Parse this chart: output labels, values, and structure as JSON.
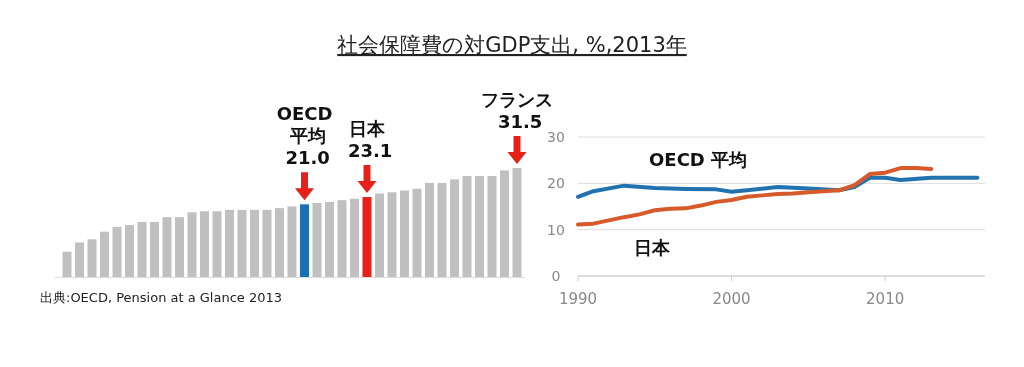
{
  "chart_data": [
    {
      "type": "bar",
      "title": "社会保障費の対GDP支出, %,2013年",
      "categories": [
        null,
        null,
        null,
        null,
        null,
        null,
        null,
        null,
        null,
        null,
        null,
        null,
        null,
        null,
        null,
        null,
        null,
        null,
        null,
        null,
        null,
        null,
        null,
        null,
        null,
        null,
        null,
        null,
        null,
        null,
        null,
        null,
        null,
        null,
        null,
        null,
        null
      ],
      "values": [
        7.3,
        10.0,
        10.9,
        13.1,
        14.5,
        15.0,
        15.9,
        15.9,
        17.3,
        17.3,
        18.7,
        19.0,
        19.0,
        19.4,
        19.4,
        19.4,
        19.4,
        19.9,
        20.4,
        21.0,
        21.4,
        21.7,
        22.2,
        22.6,
        23.1,
        24.1,
        24.5,
        25.0,
        25.5,
        27.2,
        27.2,
        28.2,
        29.2,
        29.2,
        29.2,
        30.8,
        31.5
      ],
      "colors": [
        "#c0c0c0",
        "#c0c0c0",
        "#c0c0c0",
        "#c0c0c0",
        "#c0c0c0",
        "#c0c0c0",
        "#c0c0c0",
        "#c0c0c0",
        "#c0c0c0",
        "#c0c0c0",
        "#c0c0c0",
        "#c0c0c0",
        "#c0c0c0",
        "#c0c0c0",
        "#c0c0c0",
        "#c0c0c0",
        "#c0c0c0",
        "#c0c0c0",
        "#c0c0c0",
        "#1a6fb5",
        "#c0c0c0",
        "#c0c0c0",
        "#c0c0c0",
        "#c0c0c0",
        "#e8201a",
        "#c0c0c0",
        "#c0c0c0",
        "#c0c0c0",
        "#c0c0c0",
        "#c0c0c0",
        "#c0c0c0",
        "#c0c0c0",
        "#c0c0c0",
        "#c0c0c0",
        "#c0c0c0",
        "#c0c0c0",
        "#c0c0c0"
      ],
      "value_labels": [
        null,
        null,
        null,
        null,
        null,
        null,
        null,
        null,
        null,
        null,
        null,
        null,
        null,
        null,
        null,
        null,
        null,
        null,
        null,
        "OECD 平均 21.0",
        null,
        null,
        null,
        null,
        "日本 23.1",
        null,
        null,
        null,
        null,
        null,
        null,
        null,
        null,
        null,
        null,
        null,
        "フランス 31.5"
      ],
      "annotations": [
        "出典:OECD, Pension at a Glance 2013"
      ]
    },
    {
      "type": "line",
      "xlim": [
        1990,
        2016.5
      ],
      "ylim": [
        0,
        30
      ],
      "xticks": [
        1990,
        2000,
        2010
      ],
      "yticks": [
        0,
        10,
        20,
        30
      ],
      "grid": "y",
      "series": [
        {
          "name": "OECD 平均",
          "color": "#2272b0",
          "x": [
            1990,
            1991,
            1993,
            1995,
            1997,
            1999,
            2000,
            2001,
            2003,
            2005,
            2007,
            2008,
            2009,
            2010,
            2011,
            2013,
            2015,
            2016
          ],
          "values": [
            17.1,
            18.3,
            19.5,
            19.0,
            18.8,
            18.7,
            18.2,
            18.5,
            19.2,
            18.9,
            18.5,
            19.2,
            21.2,
            21.2,
            20.7,
            21.2,
            21.2,
            21.2
          ]
        },
        {
          "name": "日本",
          "color": "#d65a2a",
          "x": [
            1990,
            1991,
            1992,
            1993,
            1994,
            1995,
            1996,
            1997,
            1998,
            1999,
            2000,
            2001,
            2002,
            2003,
            2004,
            2005,
            2006,
            2007,
            2008,
            2009,
            2010,
            2011,
            2012,
            2013
          ],
          "values": [
            11.1,
            11.3,
            12.0,
            12.7,
            13.3,
            14.2,
            14.5,
            14.6,
            15.2,
            16.0,
            16.4,
            17.1,
            17.4,
            17.7,
            17.8,
            18.1,
            18.3,
            18.5,
            19.6,
            22.0,
            22.3,
            23.3,
            23.3,
            23.1
          ]
        }
      ]
    }
  ]
}
